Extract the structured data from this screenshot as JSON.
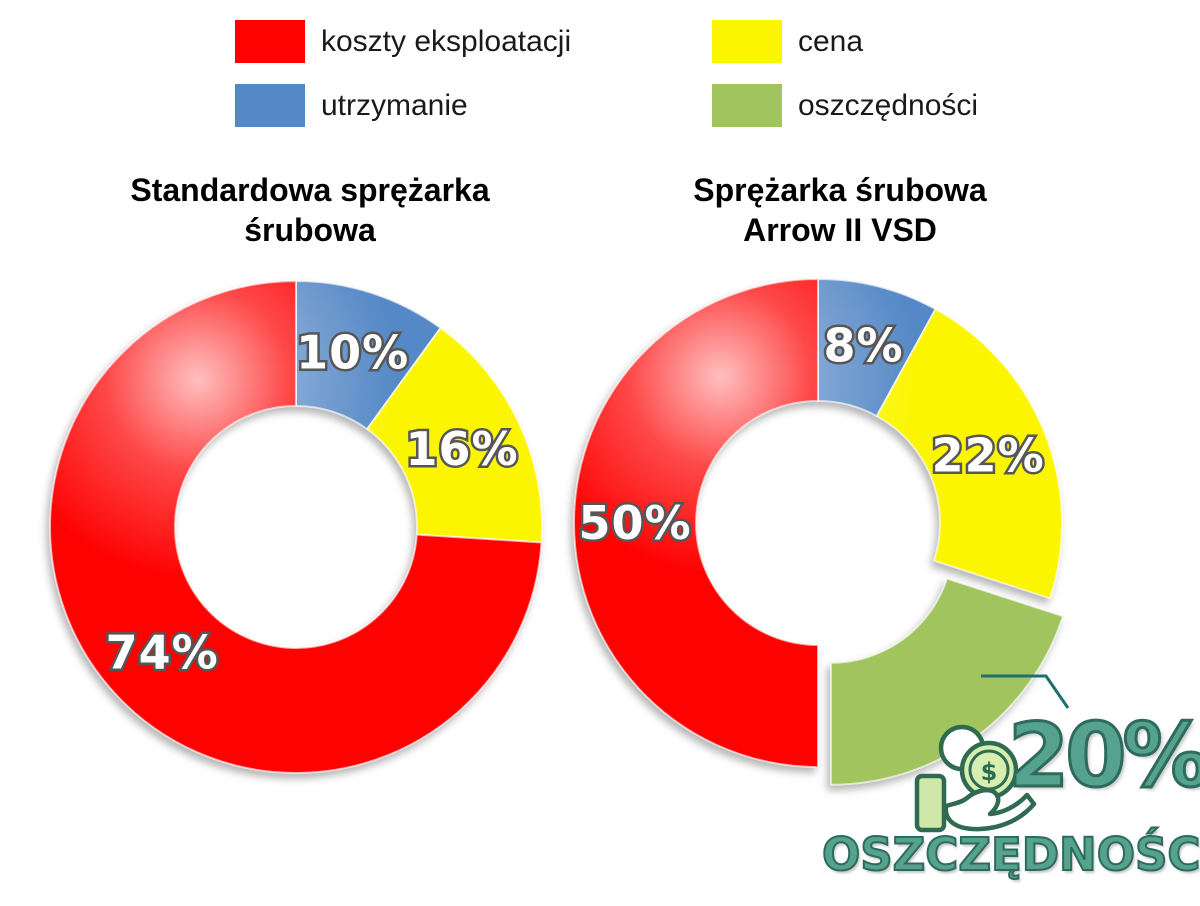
{
  "page": {
    "background": "#ffffff"
  },
  "legend": {
    "items": [
      {
        "label": "koszty eksploatacji",
        "color": "#FE0101"
      },
      {
        "label": "cena",
        "color": "#FBF500"
      },
      {
        "label": "utrzymanie",
        "color": "#5588C6"
      },
      {
        "label": "oszczędności",
        "color": "#A2C45E"
      }
    ]
  },
  "chart_data": [
    {
      "type": "donut",
      "title": "Standardowa sprężarka śrubowa",
      "title_lines": [
        "Standardowa sprężarka",
        "śrubowa"
      ],
      "unit": "%",
      "start_angle_deg": 0,
      "direction": "clockwise",
      "legend_position": "top",
      "slices": [
        {
          "label": "utrzymanie",
          "value": 10,
          "color": "#5588C6"
        },
        {
          "label": "cena",
          "value": 16,
          "color": "#FBF500"
        },
        {
          "label": "koszty eksploatacji",
          "value": 74,
          "color": "#FE0101"
        }
      ]
    },
    {
      "type": "donut",
      "title": "Sprężarka śrubowa Arrow II VSD",
      "title_lines": [
        "Sprężarka śrubowa",
        "Arrow II VSD"
      ],
      "unit": "%",
      "start_angle_deg": 0,
      "direction": "clockwise",
      "legend_position": "top",
      "slices": [
        {
          "label": "utrzymanie",
          "value": 8,
          "color": "#5588C6"
        },
        {
          "label": "cena",
          "value": 22,
          "color": "#FBF500"
        },
        {
          "label": "oszczędności",
          "value": 20,
          "color": "#A2C45E",
          "exploded": true,
          "show_label": false
        },
        {
          "label": "koszty eksploatacji",
          "value": 50,
          "color": "#FE0101"
        }
      ]
    }
  ],
  "savings_callout": {
    "headline": "20%",
    "subline": "OSZCZĘDNOŚCI",
    "color": "#55A28E",
    "outline_color": "#2D6B5C",
    "icon": "hand-coins-icon",
    "dollar_sign": "$"
  }
}
